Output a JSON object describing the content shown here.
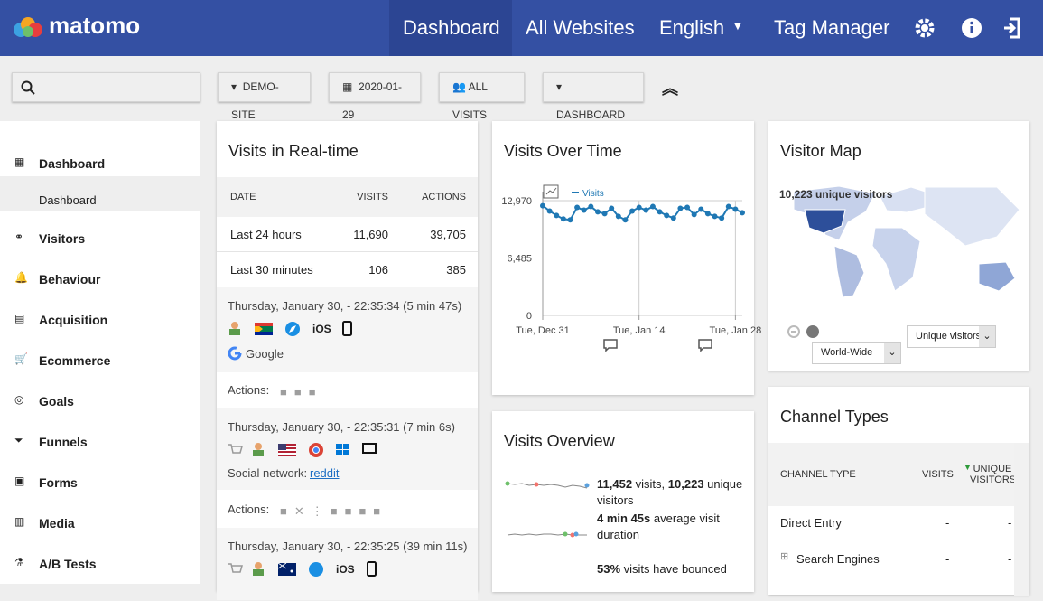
{
  "header": {
    "logo": "matomo",
    "nav": [
      "Dashboard",
      "All Websites",
      "English",
      "Tag Manager"
    ]
  },
  "toolbar": {
    "buttons": [
      "DEMO-SITE",
      "2020-01-29",
      "ALL VISITS",
      "DASHBOARD"
    ]
  },
  "sidebar": {
    "items": [
      "Dashboard",
      "Dashboard",
      "Visitors",
      "Behaviour",
      "Acquisition",
      "Ecommerce",
      "Goals",
      "Funnels",
      "Forms",
      "Media",
      "A/B Tests"
    ]
  },
  "realtime": {
    "title": "Visits in Real-time",
    "headers": [
      "DATE",
      "VISITS",
      "ACTIONS"
    ],
    "rows": [
      [
        "Last 24 hours",
        "11,690",
        "39,705"
      ],
      [
        "Last 30 minutes",
        "106",
        "385"
      ]
    ],
    "actions_label": "Actions:",
    "visits": [
      {
        "time": "Thursday, January 30, - 22:35:34 (5 min 47s)",
        "os": "iOS",
        "referrer": "Google"
      },
      {
        "time": "Thursday, January 30, - 22:35:31 (7 min 6s)",
        "referrer_label": "Social network:",
        "referrer_link": "reddit"
      },
      {
        "time": "Thursday, January 30, - 22:35:25 (39 min 11s)",
        "os": "iOS"
      }
    ]
  },
  "visits_over_time": {
    "type": "line",
    "title": "Visits Over Time",
    "series": [
      {
        "name": "Visits",
        "color": "#1f78b4",
        "values": [
          12400,
          11800,
          11300,
          10900,
          10800,
          12200,
          11900,
          12300,
          11700,
          11500,
          12100,
          11200,
          10800,
          11800,
          12200,
          11900,
          12300,
          11700,
          11300,
          11000,
          12100,
          12200,
          11400,
          12000,
          11500,
          11200,
          11000,
          12300,
          12000,
          11600
        ]
      }
    ],
    "xlim": [
      0,
      29
    ],
    "xticks": [
      {
        "value": 0,
        "label": "Tue, Dec 31"
      },
      {
        "value": 14,
        "label": "Tue, Jan 14"
      },
      {
        "value": 28,
        "label": "Tue, Jan 28"
      }
    ],
    "ylim": [
      0,
      12970
    ],
    "yticks": [
      0,
      {
        "value": 6485,
        "label": "6,485"
      },
      {
        "value": 12970,
        "label": "12,970"
      }
    ],
    "grid": true
  },
  "visits_overview": {
    "title": "Visits Overview",
    "items": [
      {
        "parts": [
          "11,452",
          " visits, ",
          "10,223",
          " unique visitors"
        ]
      },
      {
        "parts": [
          "4 min 45s",
          " average visit duration"
        ]
      },
      {
        "parts": [
          "53%",
          " visits have bounced"
        ]
      }
    ]
  },
  "visitor_map": {
    "title": "Visitor Map",
    "summary": "10,223 unique visitors",
    "region": "World-Wide",
    "metric": "Unique visitors"
  },
  "channel_types": {
    "title": "Channel Types",
    "headers": [
      "CHANNEL TYPE",
      "VISITS",
      "UNIQUE VISITORS"
    ],
    "rows": [
      [
        "Direct Entry",
        "-",
        "-"
      ],
      [
        "Search Engines",
        "-",
        "-"
      ]
    ]
  }
}
